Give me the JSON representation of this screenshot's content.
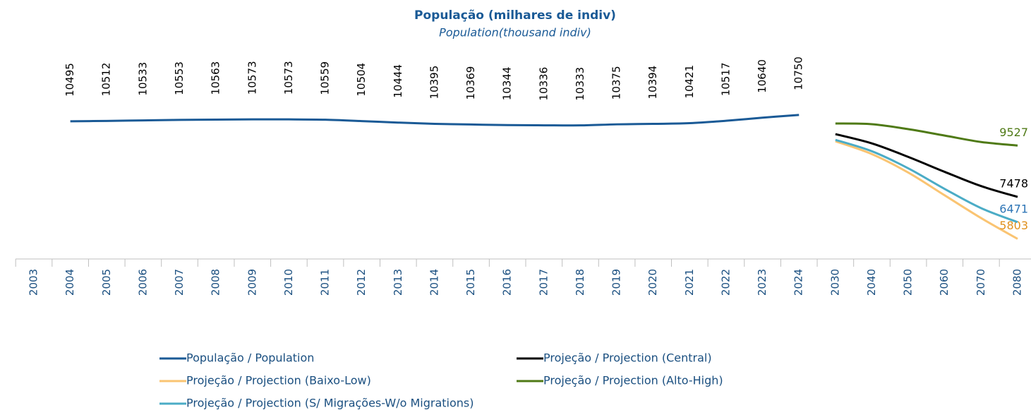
{
  "chart_data": {
    "type": "line",
    "title": "População (milhares de indiv)",
    "subtitle": "Population(thousand indiv)",
    "categories": [
      "2003",
      "2004",
      "2005",
      "2006",
      "2007",
      "2008",
      "2009",
      "2010",
      "2011",
      "2012",
      "2013",
      "2014",
      "2015",
      "2016",
      "2017",
      "2018",
      "2019",
      "2020",
      "2021",
      "2022",
      "2023",
      "2024",
      "2030",
      "2040",
      "2050",
      "2060",
      "2070",
      "2080"
    ],
    "ylim": [
      5000,
      11000
    ],
    "legend": "bottom",
    "series": [
      {
        "name": "População / Population",
        "color": "#1a5a96",
        "label_color": "#000000",
        "label_position": "vertical",
        "values": [
          null,
          10495,
          10512,
          10533,
          10553,
          10563,
          10573,
          10573,
          10559,
          10504,
          10444,
          10395,
          10369,
          10344,
          10336,
          10333,
          10375,
          10394,
          10421,
          10517,
          10640,
          10750,
          null,
          null,
          null,
          null,
          null,
          null
        ]
      },
      {
        "name": "Projeção / Projection (Central)",
        "color": "#000000",
        "label_color": "#000000",
        "label_position": "last",
        "values": [
          null,
          null,
          null,
          null,
          null,
          null,
          null,
          null,
          null,
          null,
          null,
          null,
          null,
          null,
          null,
          null,
          null,
          null,
          null,
          null,
          null,
          null,
          9983,
          9614,
          9074,
          8477,
          7909,
          7478
        ]
      },
      {
        "name": "Projeção / Projection (Baixo-Low)",
        "color": "#fac472",
        "label_color": "#e0901c",
        "label_position": "last",
        "values": [
          null,
          null,
          null,
          null,
          null,
          null,
          null,
          null,
          null,
          null,
          null,
          null,
          null,
          null,
          null,
          null,
          null,
          null,
          null,
          null,
          null,
          null,
          9699,
          9187,
          8449,
          7540,
          6631,
          5803
        ]
      },
      {
        "name": "Projeção / Projection (Alto-High)",
        "color": "#4f7a16",
        "label_color": "#4f7a16",
        "label_position": "last",
        "values": [
          null,
          null,
          null,
          null,
          null,
          null,
          null,
          null,
          null,
          null,
          null,
          null,
          null,
          null,
          null,
          null,
          null,
          null,
          null,
          null,
          null,
          null,
          10409,
          10380,
          10182,
          9926,
          9670,
          9527
        ]
      },
      {
        "name": "Projeção / Projection (S/ Migrações-W/o Migrations)",
        "color": "#4bacc6",
        "label_color": "#2e75b6",
        "label_position": "last",
        "values": [
          null,
          null,
          null,
          null,
          null,
          null,
          null,
          null,
          null,
          null,
          null,
          null,
          null,
          null,
          null,
          null,
          null,
          null,
          null,
          null,
          null,
          null,
          9756,
          9301,
          8619,
          7795,
          7028,
          6471
        ]
      }
    ]
  }
}
